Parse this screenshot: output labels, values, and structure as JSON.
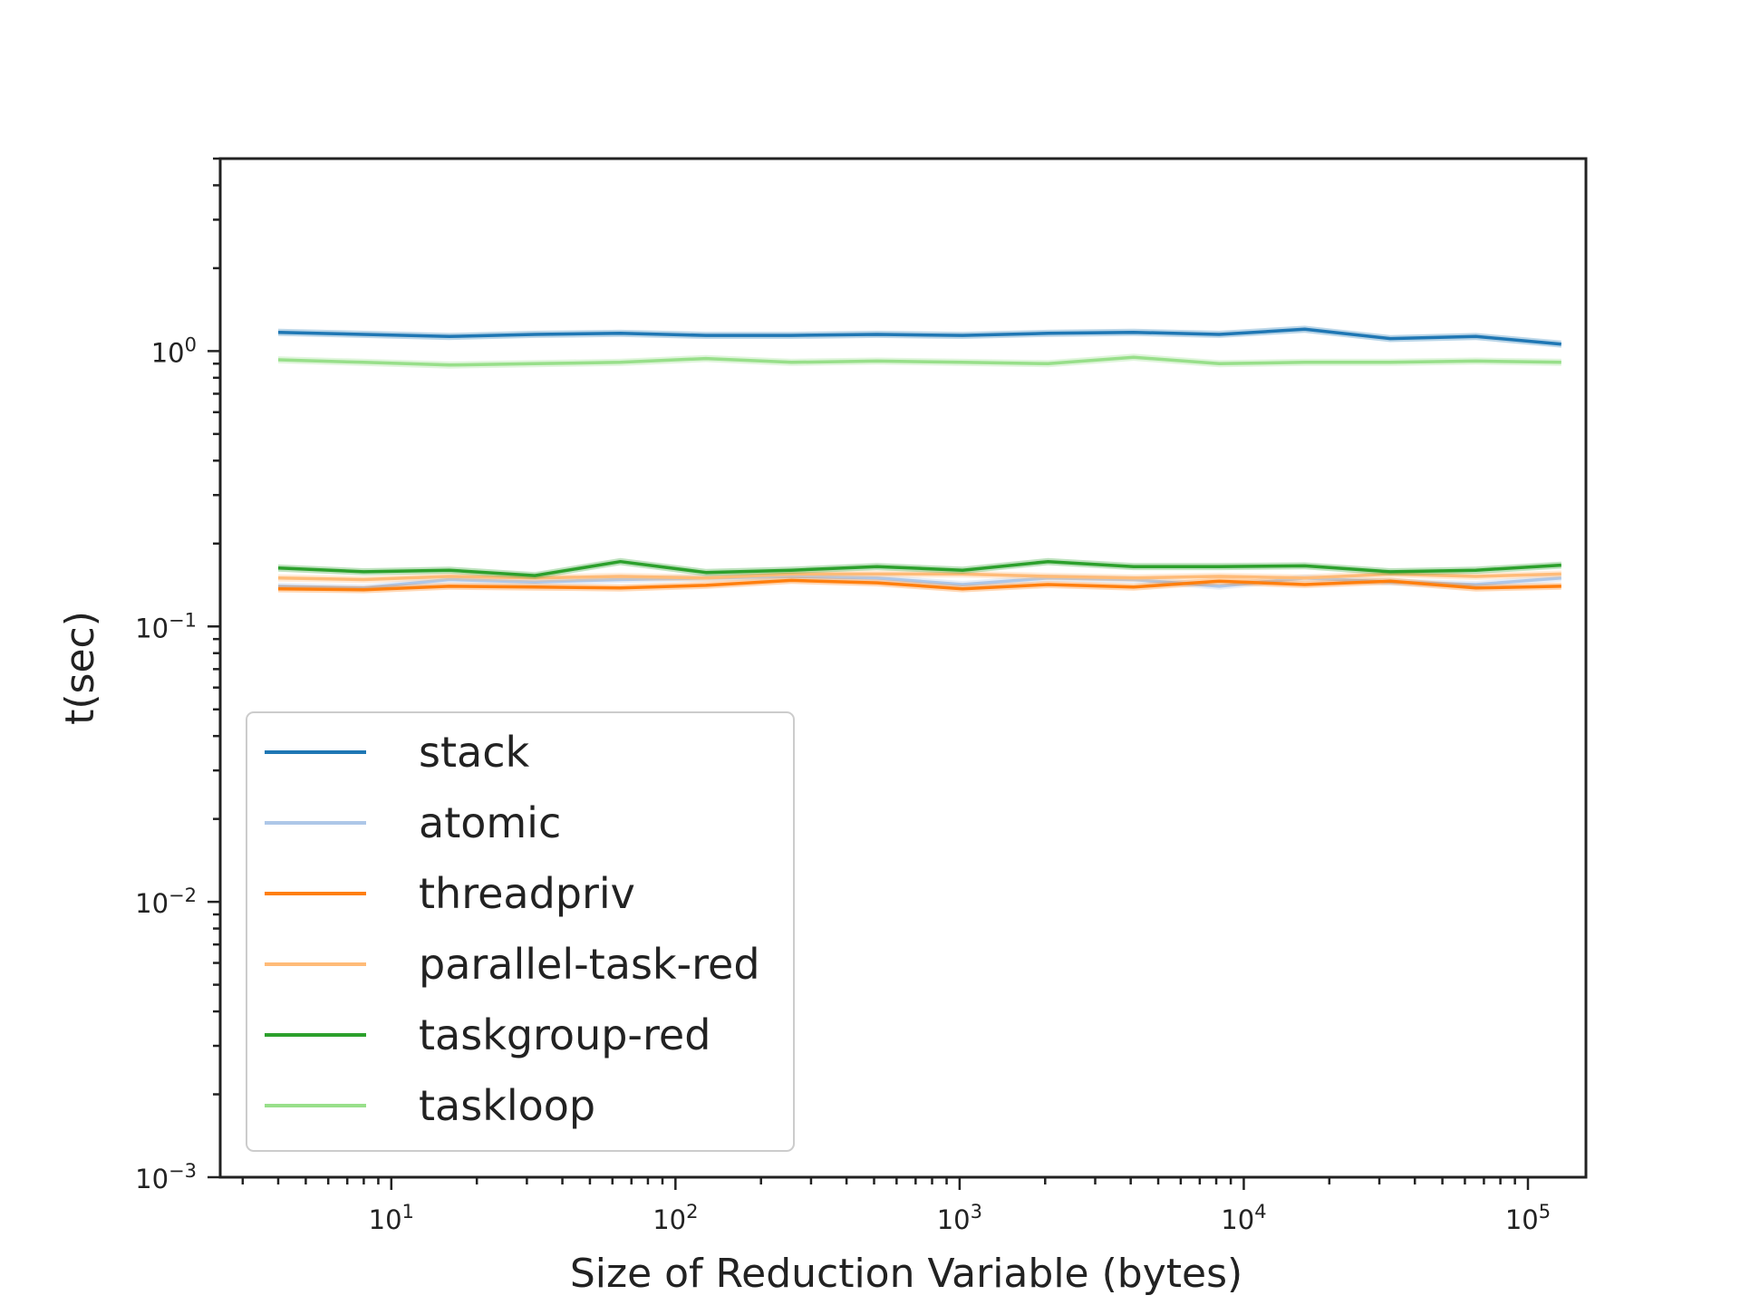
{
  "chart_data": {
    "type": "line",
    "xlabel": "Size of Reduction Variable (bytes)",
    "ylabel": "t(sec)",
    "xscale": "log",
    "yscale": "log",
    "xlim": [
      2.5,
      160000
    ],
    "ylim": [
      0.001,
      5
    ],
    "x_tick_labels": [
      {
        "value": 10,
        "base": "10",
        "exp": "1"
      },
      {
        "value": 100,
        "base": "10",
        "exp": "2"
      },
      {
        "value": 1000,
        "base": "10",
        "exp": "3"
      },
      {
        "value": 10000,
        "base": "10",
        "exp": "4"
      },
      {
        "value": 100000,
        "base": "10",
        "exp": "5"
      }
    ],
    "y_tick_labels": [
      {
        "value": 0.001,
        "base": "10",
        "exp": "−3"
      },
      {
        "value": 0.01,
        "base": "10",
        "exp": "−2"
      },
      {
        "value": 0.1,
        "base": "10",
        "exp": "−1"
      },
      {
        "value": 1,
        "base": "10",
        "exp": "0"
      }
    ],
    "legend_position": "lower-left",
    "grid": false,
    "x": [
      4,
      8,
      16,
      32,
      64,
      128,
      256,
      512,
      1024,
      2048,
      4096,
      8192,
      16384,
      32768,
      65536,
      131072
    ],
    "series": [
      {
        "name": "stack",
        "color": "#1f77b4",
        "values": [
          1.17,
          1.15,
          1.13,
          1.15,
          1.16,
          1.14,
          1.14,
          1.15,
          1.14,
          1.16,
          1.17,
          1.15,
          1.2,
          1.11,
          1.13,
          1.06
        ]
      },
      {
        "name": "atomic",
        "color": "#aec7e8",
        "values": [
          0.14,
          0.138,
          0.148,
          0.145,
          0.148,
          0.15,
          0.152,
          0.15,
          0.142,
          0.15,
          0.148,
          0.14,
          0.15,
          0.145,
          0.142,
          0.15
        ]
      },
      {
        "name": "threadpriv",
        "color": "#ff7f0e",
        "values": [
          0.137,
          0.136,
          0.14,
          0.139,
          0.138,
          0.141,
          0.147,
          0.144,
          0.137,
          0.142,
          0.139,
          0.146,
          0.142,
          0.146,
          0.138,
          0.14
        ]
      },
      {
        "name": "parallel-task-red",
        "color": "#ffbb78",
        "values": [
          0.15,
          0.148,
          0.152,
          0.15,
          0.152,
          0.15,
          0.155,
          0.155,
          0.155,
          0.152,
          0.15,
          0.152,
          0.15,
          0.155,
          0.152,
          0.155
        ]
      },
      {
        "name": "taskgroup-red",
        "color": "#2ca02c",
        "values": [
          0.163,
          0.158,
          0.16,
          0.153,
          0.172,
          0.157,
          0.16,
          0.165,
          0.16,
          0.172,
          0.165,
          0.165,
          0.166,
          0.158,
          0.16,
          0.167
        ]
      },
      {
        "name": "taskloop",
        "color": "#98df8a",
        "values": [
          0.93,
          0.91,
          0.89,
          0.9,
          0.91,
          0.94,
          0.91,
          0.92,
          0.91,
          0.9,
          0.95,
          0.9,
          0.91,
          0.91,
          0.92,
          0.91
        ]
      }
    ]
  }
}
